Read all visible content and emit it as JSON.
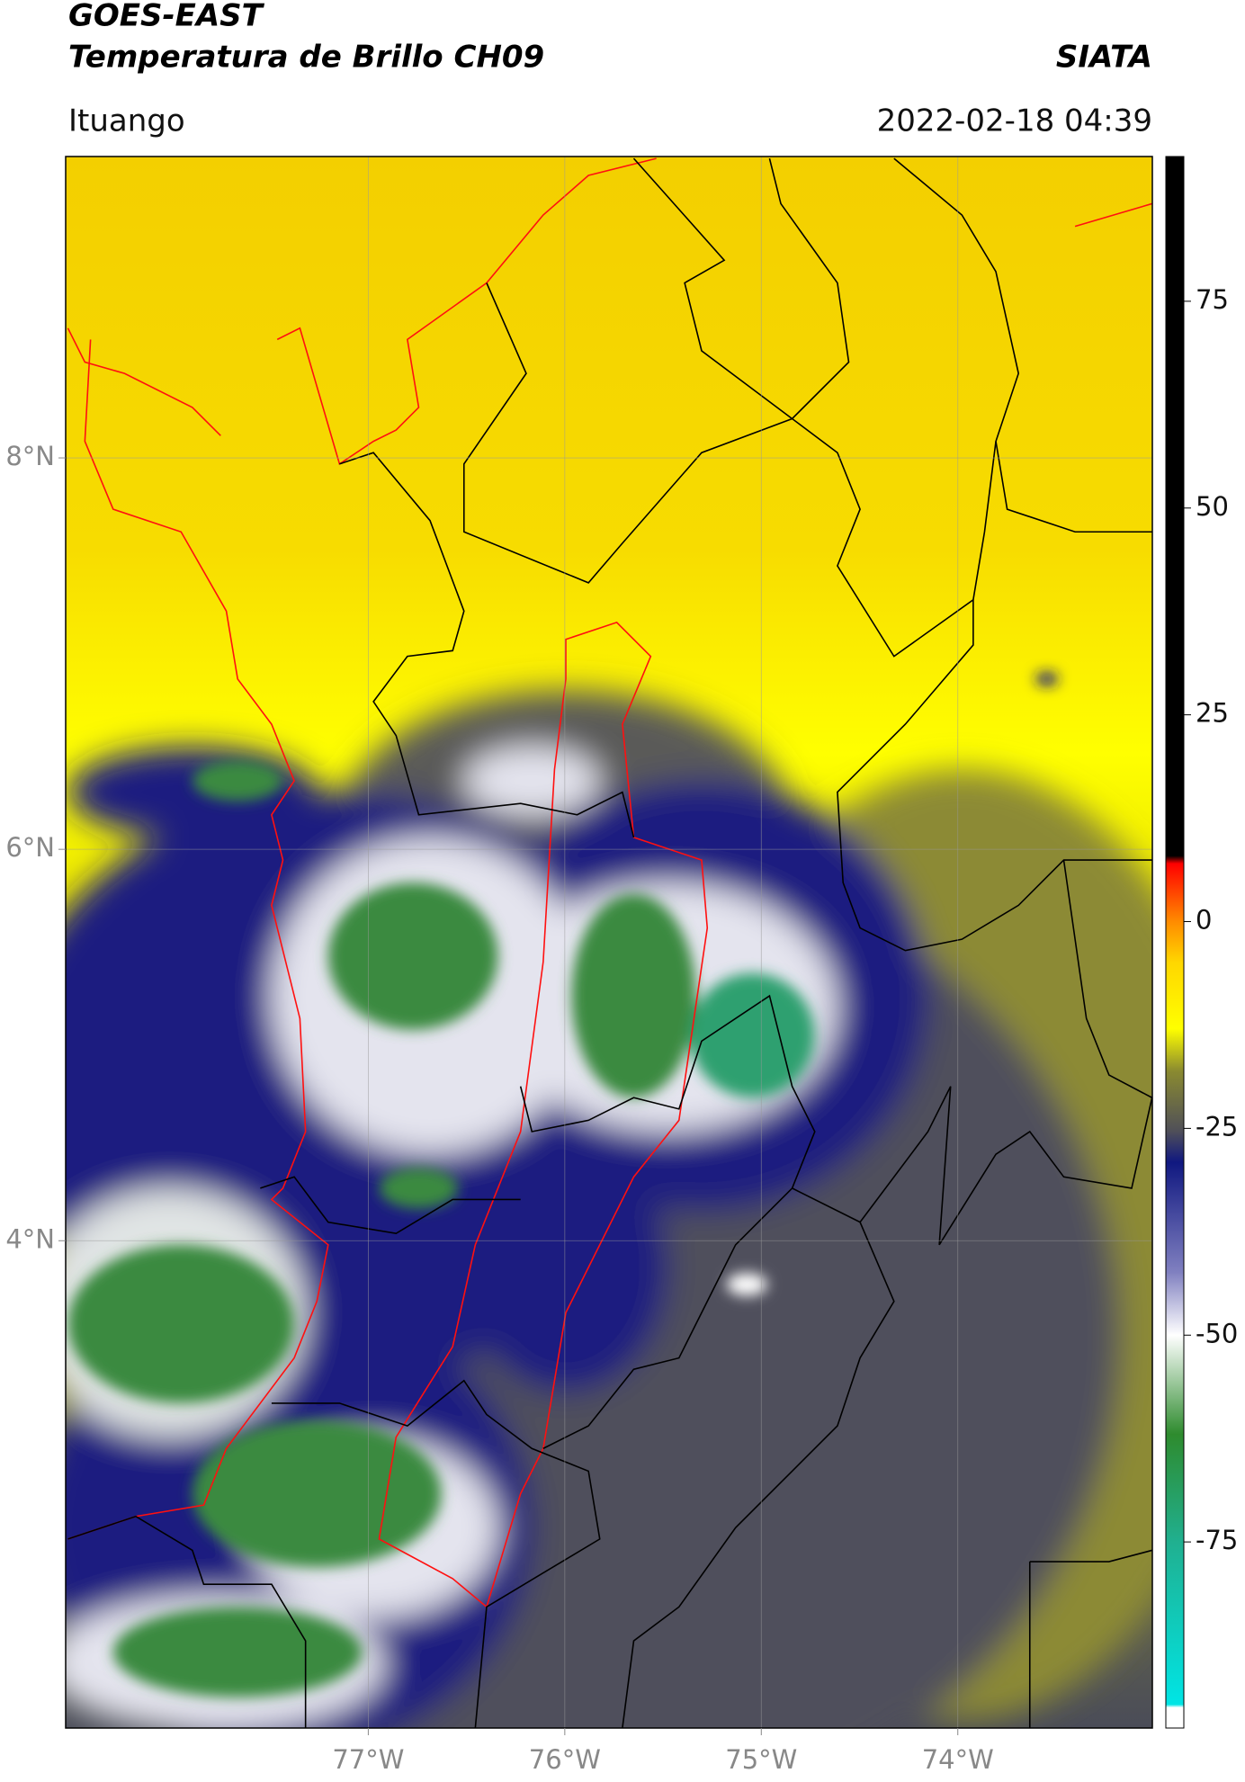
{
  "header": {
    "title": "GOES-EAST",
    "subtitle": "Temperatura de Brillo CH09",
    "source": "SIATA",
    "location": "Ituango",
    "datetime": "2022-02-18 04:39"
  },
  "map": {
    "lonlim": [
      -78.54,
      -73.01
    ],
    "latlim": [
      1.51,
      9.54
    ],
    "grid": true,
    "lon_ticks": [
      {
        "value": -77,
        "label": "77°W"
      },
      {
        "value": -76,
        "label": "76°W"
      },
      {
        "value": -75,
        "label": "75°W"
      },
      {
        "value": -74,
        "label": "74°W"
      }
    ],
    "lat_ticks": [
      {
        "value": 8,
        "label": "8°N"
      },
      {
        "value": 6,
        "label": "6°N"
      },
      {
        "value": 4,
        "label": "4°N"
      }
    ]
  },
  "colorbar": {
    "range": [
      -97.5,
      92.5
    ],
    "ticks": [
      75,
      50,
      25,
      0,
      -25,
      -50,
      -75
    ]
  }
}
